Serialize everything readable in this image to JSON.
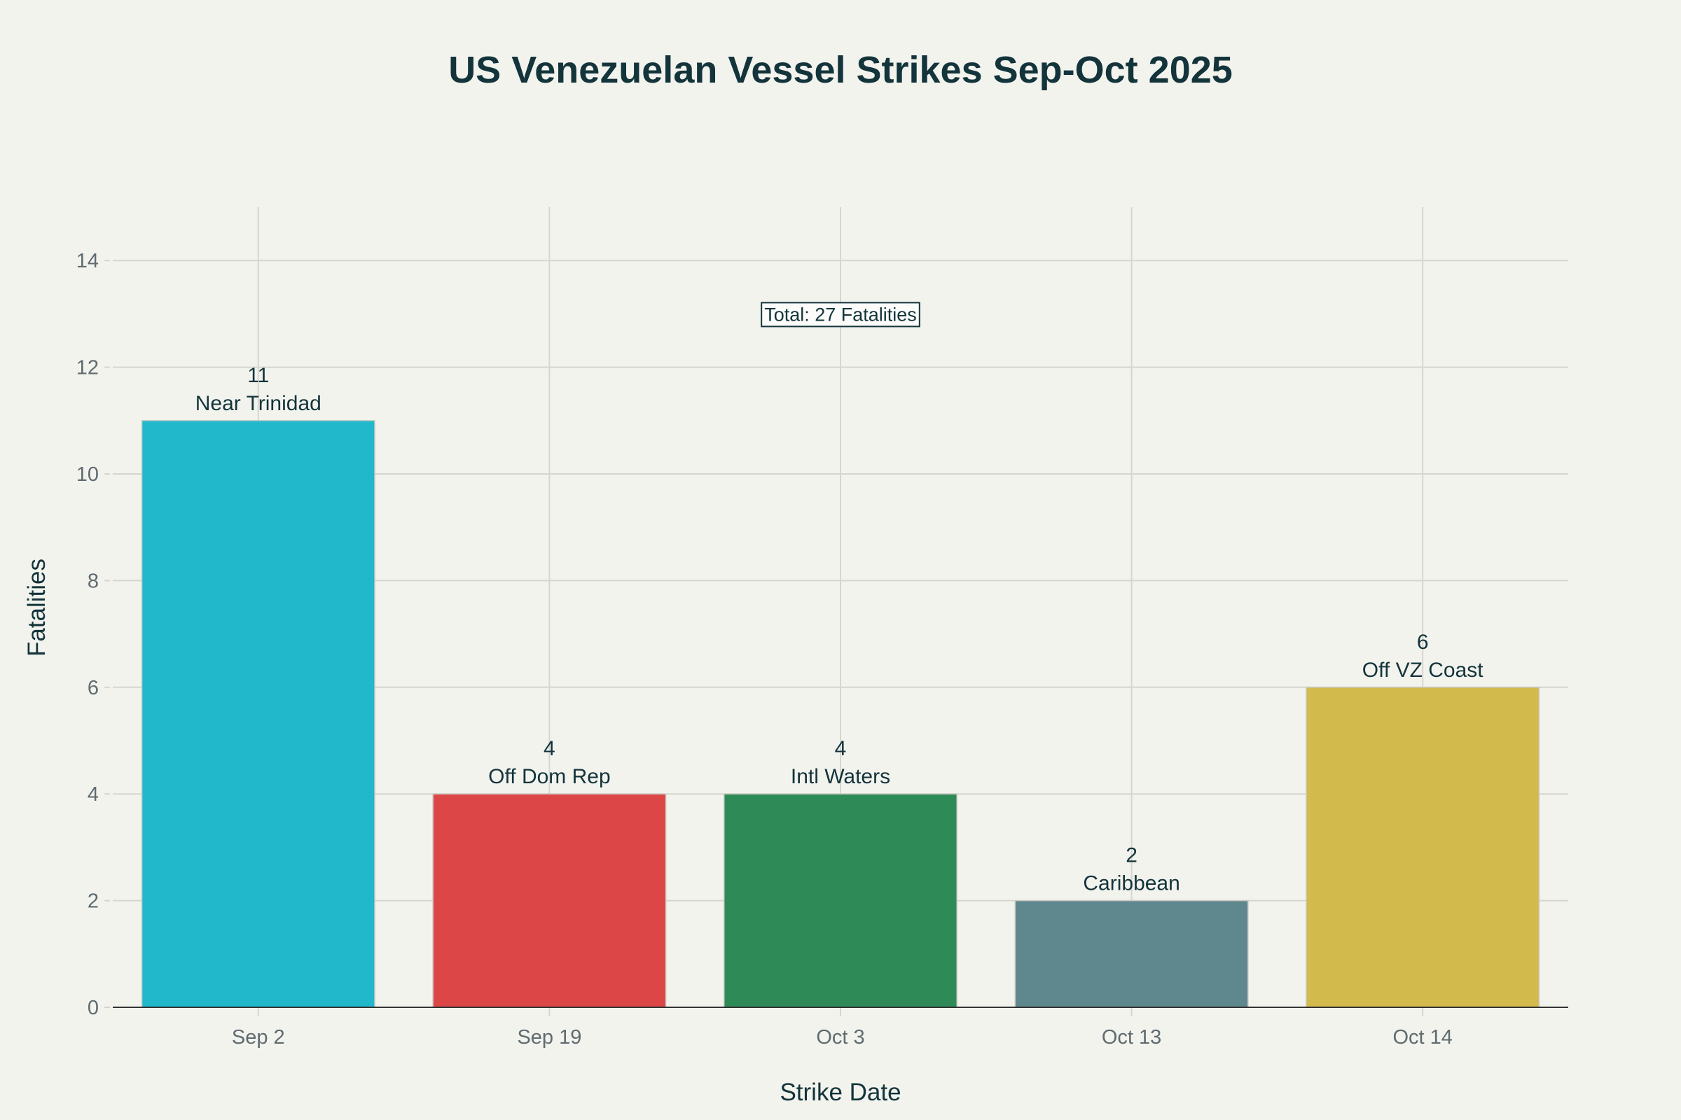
{
  "chart_data": {
    "type": "bar",
    "title": "US Venezuelan Vessel Strikes Sep-Oct 2025",
    "xlabel": "Strike Date",
    "ylabel": "Fatalities",
    "categories": [
      "Sep 2",
      "Sep 19",
      "Oct 3",
      "Oct 13",
      "Oct 14"
    ],
    "values": [
      11,
      4,
      4,
      2,
      6
    ],
    "locations": [
      "Near Trinidad",
      "Off Dom Rep",
      "Intl Waters",
      "Caribbean",
      "Off VZ Coast"
    ],
    "colors": [
      "#21B8CC",
      "#DD4647",
      "#2E8B57",
      "#5F878E",
      "#D3BA4C"
    ],
    "ylim": [
      0,
      15
    ],
    "yticks": [
      0,
      2,
      4,
      6,
      8,
      10,
      12,
      14
    ],
    "grid": true,
    "legend": "none",
    "annotation": {
      "text": "Total: 27 Fatalities",
      "x": "Oct 3",
      "y": 13
    }
  }
}
